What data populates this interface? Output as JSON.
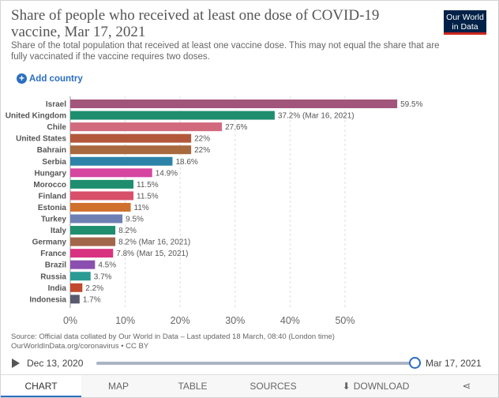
{
  "header": {
    "title": "Share of people who received at least one dose of COVID-19 vaccine, Mar 17, 2021",
    "subtitle": "Share of the total population that received at least one vaccine dose. This may not equal the share that are fully vaccinated if the vaccine requires two doses.",
    "logo": "Our World in Data"
  },
  "controls": {
    "add_country": "Add country"
  },
  "chart_data": {
    "type": "bar",
    "orientation": "horizontal",
    "categories": [
      "Israel",
      "United Kingdom",
      "Chile",
      "United States",
      "Bahrain",
      "Serbia",
      "Hungary",
      "Morocco",
      "Finland",
      "Estonia",
      "Turkey",
      "Italy",
      "Germany",
      "France",
      "Brazil",
      "Russia",
      "India",
      "Indonesia"
    ],
    "values": [
      59.5,
      37.2,
      27.6,
      22,
      22,
      18.6,
      14.9,
      11.5,
      11.5,
      11,
      9.5,
      8.2,
      8.2,
      7.8,
      4.5,
      3.7,
      2.2,
      1.7
    ],
    "value_labels": [
      "59.5%",
      "37.2% (Mar 16, 2021)",
      "27.6%",
      "22%",
      "22%",
      "18.6%",
      "14.9%",
      "11.5%",
      "11.5%",
      "11%",
      "9.5%",
      "8.2%",
      "8.2% (Mar 16, 2021)",
      "7.8% (Mar 15, 2021)",
      "4.5%",
      "3.7%",
      "2.2%",
      "1.7%"
    ],
    "colors": [
      "#a2557b",
      "#1e8e6e",
      "#d26a7e",
      "#b3573b",
      "#a8693e",
      "#2c83a7",
      "#d645a0",
      "#1e8e6e",
      "#d84f6a",
      "#d0702d",
      "#6e7fb4",
      "#1e8e6e",
      "#a2664a",
      "#d93280",
      "#8b4fb0",
      "#2a9b93",
      "#c0492e",
      "#5a5a6e"
    ],
    "x_ticks": [
      "0%",
      "10%",
      "20%",
      "30%",
      "40%",
      "50%"
    ],
    "xlim": [
      0,
      60
    ],
    "grid": true
  },
  "footer": {
    "source_line1": "Source: Official data collated by Our World in Data – Last updated 18 March, 08:40 (London time)",
    "source_line2": "OurWorldInData.org/coronavirus • CC BY"
  },
  "timeline": {
    "start": "Dec 13, 2020",
    "end": "Mar 17, 2021",
    "position": 1.0
  },
  "tabs": [
    {
      "label": "CHART"
    },
    {
      "label": "MAP"
    },
    {
      "label": "TABLE"
    },
    {
      "label": "SOURCES"
    },
    {
      "label": "DOWNLOAD"
    }
  ]
}
